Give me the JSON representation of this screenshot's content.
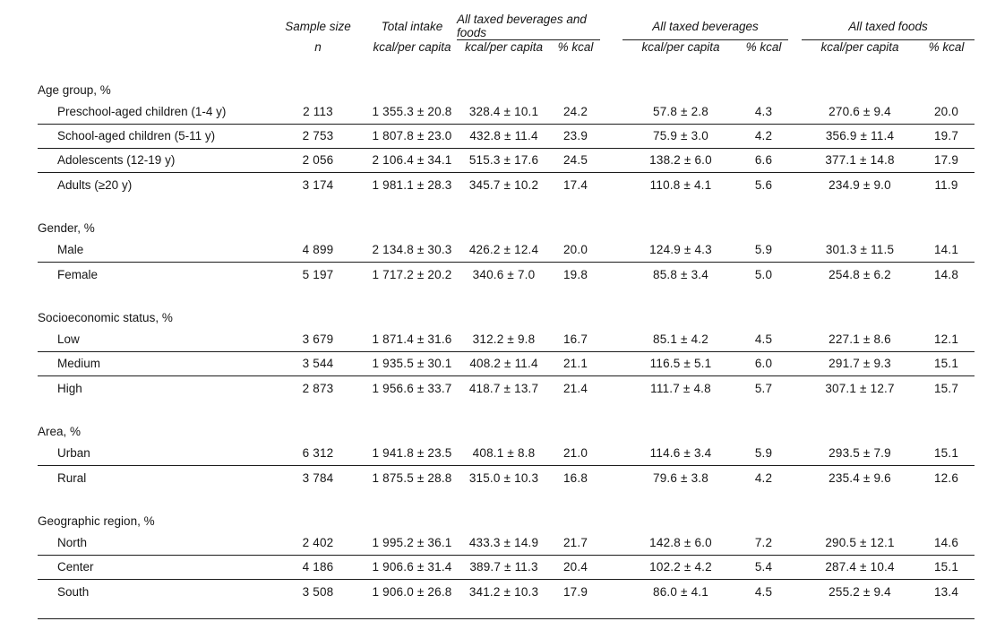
{
  "table": {
    "col_headers": {
      "sample_size": {
        "line1": "Sample size",
        "line2": "n"
      },
      "total_intake": {
        "line1": "Total intake",
        "line2": "kcal/per capita"
      },
      "groups": [
        {
          "label": "All taxed beverages and foods",
          "sub": [
            "kcal/per capita",
            "% kcal"
          ]
        },
        {
          "label": "All taxed beverages",
          "sub": [
            "kcal/per capita",
            "% kcal"
          ]
        },
        {
          "label": "All taxed foods",
          "sub": [
            "kcal/per capita",
            "% kcal"
          ]
        }
      ]
    },
    "sections": [
      {
        "header": "Age group, %",
        "rows": [
          {
            "label": "Preschool-aged children (1-4 y)",
            "values": [
              "2 113",
              "1 355.3 ± 20.8",
              "328.4 ± 10.1",
              "24.2",
              "57.8 ± 2.8",
              "4.3",
              "270.6 ± 9.4",
              "20.0"
            ]
          },
          {
            "label": "School-aged children (5-11 y)",
            "values": [
              "2 753",
              "1 807.8 ± 23.0",
              "432.8 ± 11.4",
              "23.9",
              "75.9 ± 3.0",
              "4.2",
              "356.9 ± 11.4",
              "19.7"
            ]
          },
          {
            "label": "Adolescents (12-19 y)",
            "values": [
              "2 056",
              "2 106.4 ± 34.1",
              "515.3 ± 17.6",
              "24.5",
              "138.2 ± 6.0",
              "6.6",
              "377.1 ± 14.8",
              "17.9"
            ]
          },
          {
            "label": "Adults (≥20 y)",
            "values": [
              "3 174",
              "1 981.1 ± 28.3",
              "345.7 ± 10.2",
              "17.4",
              "110.8 ± 4.1",
              "5.6",
              "234.9 ± 9.0",
              "11.9"
            ]
          }
        ]
      },
      {
        "header": "Gender, %",
        "rows": [
          {
            "label": "Male",
            "values": [
              "4 899",
              "2 134.8 ± 30.3",
              "426.2 ± 12.4",
              "20.0",
              "124.9 ± 4.3",
              "5.9",
              "301.3 ± 11.5",
              "14.1"
            ]
          },
          {
            "label": "Female",
            "values": [
              "5 197",
              "1 717.2 ± 20.2",
              "340.6 ± 7.0",
              "19.8",
              "85.8 ± 3.4",
              "5.0",
              "254.8 ± 6.2",
              "14.8"
            ]
          }
        ]
      },
      {
        "header": "Socioeconomic status, %",
        "rows": [
          {
            "label": "Low",
            "values": [
              "3 679",
              "1 871.4 ± 31.6",
              "312.2 ± 9.8",
              "16.7",
              "85.1 ± 4.2",
              "4.5",
              "227.1 ± 8.6",
              "12.1"
            ]
          },
          {
            "label": "Medium",
            "values": [
              "3 544",
              "1 935.5 ± 30.1",
              "408.2 ± 11.4",
              "21.1",
              "116.5 ± 5.1",
              "6.0",
              "291.7 ± 9.3",
              "15.1"
            ]
          },
          {
            "label": "High",
            "values": [
              "2 873",
              "1 956.6 ± 33.7",
              "418.7 ± 13.7",
              "21.4",
              "111.7 ± 4.8",
              "5.7",
              "307.1 ± 12.7",
              "15.7"
            ]
          }
        ]
      },
      {
        "header": "Area, %",
        "rows": [
          {
            "label": "Urban",
            "values": [
              "6 312",
              "1 941.8 ± 23.5",
              "408.1 ± 8.8",
              "21.0",
              "114.6 ± 3.4",
              "5.9",
              "293.5 ± 7.9",
              "15.1"
            ]
          },
          {
            "label": "Rural",
            "values": [
              "3 784",
              "1 875.5 ± 28.8",
              "315.0 ± 10.3",
              "16.8",
              "79.6 ± 3.8",
              "4.2",
              "235.4 ± 9.6",
              "12.6"
            ]
          }
        ]
      },
      {
        "header": "Geographic region, %",
        "rows": [
          {
            "label": "North",
            "values": [
              "2 402",
              "1 995.2 ± 36.1",
              "433.3 ± 14.9",
              "21.7",
              "142.8 ± 6.0",
              "7.2",
              "290.5 ± 12.1",
              "14.6"
            ]
          },
          {
            "label": "Center",
            "values": [
              "4 186",
              "1 906.6 ± 31.4",
              "389.7 ± 11.3",
              "20.4",
              "102.2 ± 4.2",
              "5.4",
              "287.4 ± 10.4",
              "15.1"
            ]
          },
          {
            "label": "South",
            "values": [
              "3 508",
              "1 906.0 ± 26.8",
              "341.2 ± 10.3",
              "17.9",
              "86.0 ± 4.1",
              "4.5",
              "255.2 ± 9.4",
              "13.4"
            ]
          }
        ]
      }
    ]
  }
}
